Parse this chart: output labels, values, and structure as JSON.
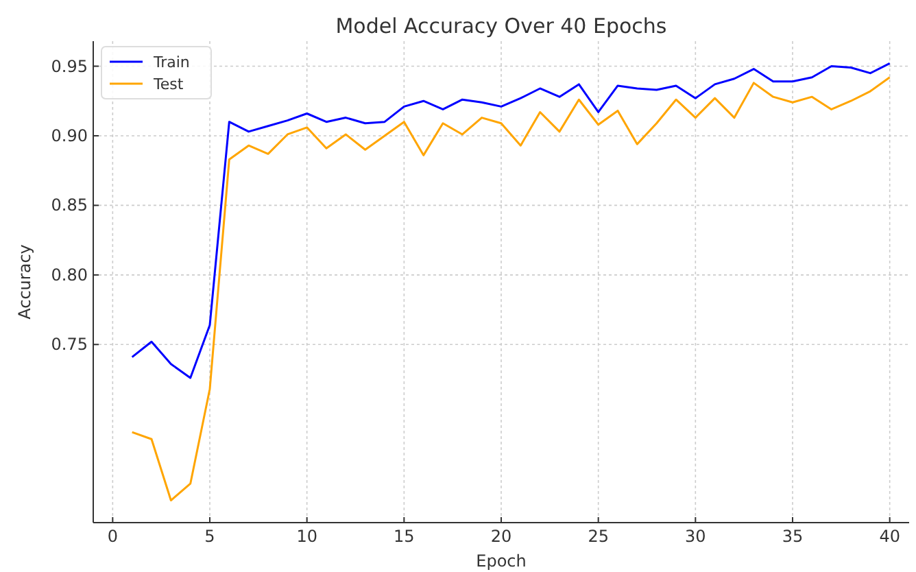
{
  "chart_data": {
    "type": "line",
    "title": "Model Accuracy Over 40 Epochs",
    "xlabel": "Epoch",
    "ylabel": "Accuracy",
    "x": [
      1,
      2,
      3,
      4,
      5,
      6,
      7,
      8,
      9,
      10,
      11,
      12,
      13,
      14,
      15,
      16,
      17,
      18,
      19,
      20,
      21,
      22,
      23,
      24,
      25,
      26,
      27,
      28,
      29,
      30,
      31,
      32,
      33,
      34,
      35,
      36,
      37,
      38,
      39,
      40
    ],
    "series": [
      {
        "name": "Train",
        "color": "#0000ff",
        "values": [
          0.741,
          0.752,
          0.736,
          0.726,
          0.764,
          0.91,
          0.903,
          0.907,
          0.911,
          0.916,
          0.91,
          0.913,
          0.909,
          0.91,
          0.921,
          0.925,
          0.919,
          0.926,
          0.924,
          0.921,
          0.927,
          0.934,
          0.928,
          0.937,
          0.917,
          0.936,
          0.934,
          0.933,
          0.936,
          0.927,
          0.937,
          0.941,
          0.948,
          0.939,
          0.939,
          0.942,
          0.95,
          0.949,
          0.945,
          0.952
        ]
      },
      {
        "name": "Test",
        "color": "#ffa500",
        "values": [
          0.687,
          0.682,
          0.638,
          0.65,
          0.718,
          0.883,
          0.893,
          0.887,
          0.901,
          0.906,
          0.891,
          0.901,
          0.89,
          0.9,
          0.91,
          0.886,
          0.909,
          0.901,
          0.913,
          0.909,
          0.893,
          0.917,
          0.903,
          0.926,
          0.908,
          0.918,
          0.894,
          0.909,
          0.926,
          0.913,
          0.927,
          0.913,
          0.938,
          0.928,
          0.924,
          0.928,
          0.919,
          0.925,
          0.932,
          0.942
        ]
      }
    ],
    "xlim": [
      -1,
      41
    ],
    "xticks": [
      0,
      5,
      10,
      15,
      20,
      25,
      30,
      35,
      40
    ],
    "ylim": [
      0.622,
      0.968
    ],
    "yticks": [
      0.75,
      {
        "value": 0.8,
        "label": "0.80"
      },
      0.85,
      {
        "value": 0.9,
        "label": "0.90"
      },
      0.95
    ],
    "grid": true,
    "legend": "top left",
    "line_style": "solid",
    "marker": "none"
  }
}
